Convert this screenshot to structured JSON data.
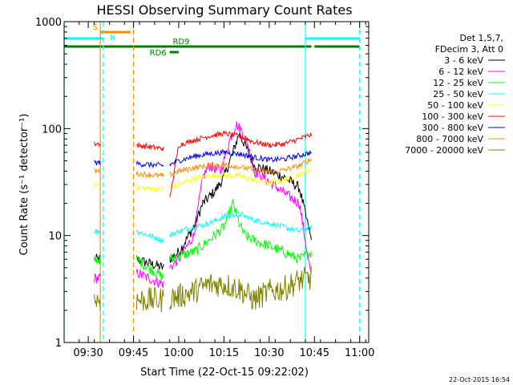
{
  "chart_data": {
    "type": "line",
    "title": "HESSI Observing Summary Count Rates",
    "xlabel": "Start Time (22-Oct-15 09:22:02)",
    "ylabel": "Count Rate (s⁻¹ detector⁻¹)",
    "yscale": "log",
    "ylim": [
      1,
      1000
    ],
    "xlim": [
      "09:22",
      "11:03"
    ],
    "x_ticks": [
      "09:30",
      "09:45",
      "10:00",
      "10:15",
      "10:30",
      "10:45",
      "11:00"
    ],
    "y_ticks": [
      "1",
      "10",
      "100",
      "1000"
    ],
    "timestamp": "22-Oct-2015 16:54",
    "legend_header": [
      "Det 1,5,7,",
      "FDecim 3, Att 0"
    ],
    "series": [
      {
        "name": "3 - 6 keV",
        "color": "#000000",
        "x": [
          "09:32",
          "09:46",
          "09:50",
          "09:55",
          "09:57",
          "10:00",
          "10:05",
          "10:08",
          "10:12",
          "10:15",
          "10:18",
          "10:20",
          "10:22",
          "10:25",
          "10:30",
          "10:35",
          "10:40",
          "10:44"
        ],
        "y": [
          6,
          6,
          5.5,
          5,
          6,
          7,
          12,
          20,
          26,
          35,
          60,
          90,
          70,
          45,
          40,
          35,
          28,
          9
        ]
      },
      {
        "name": "6 - 12 keV",
        "color": "#ff00ff",
        "x": [
          "09:32",
          "09:46",
          "09:50",
          "09:55",
          "09:57",
          "10:00",
          "10:05",
          "10:08",
          "10:10",
          "10:14",
          "10:17",
          "10:19",
          "10:21",
          "10:23",
          "10:25",
          "10:30",
          "10:35",
          "10:40",
          "10:44"
        ],
        "y": [
          4,
          4.5,
          4,
          3.5,
          5,
          6,
          10,
          35,
          45,
          40,
          80,
          110,
          95,
          70,
          40,
          32,
          25,
          20,
          4
        ]
      },
      {
        "name": "12 - 25 keV",
        "color": "#00ff00",
        "x": [
          "09:32",
          "09:46",
          "09:55",
          "09:57",
          "10:00",
          "10:05",
          "10:10",
          "10:15",
          "10:18",
          "10:20",
          "10:22",
          "10:25",
          "10:30",
          "10:35",
          "10:40",
          "10:44"
        ],
        "y": [
          6,
          6,
          4,
          6,
          6.5,
          7,
          9,
          12,
          20,
          13,
          10,
          9,
          8,
          7,
          6,
          7
        ]
      },
      {
        "name": "25 - 50 keV",
        "color": "#00ffff",
        "x": [
          "09:32",
          "09:46",
          "09:55",
          "09:57",
          "10:00",
          "10:05",
          "10:10",
          "10:15",
          "10:20",
          "10:25",
          "10:30",
          "10:35",
          "10:40",
          "10:44"
        ],
        "y": [
          11,
          11,
          9,
          10,
          11,
          12,
          13,
          15,
          16,
          14,
          13,
          12,
          11,
          12
        ]
      },
      {
        "name": "50 - 100 keV",
        "color": "#ffff00",
        "x": [
          "09:32",
          "09:46",
          "09:55",
          "09:57",
          "10:00",
          "10:05",
          "10:10",
          "10:15",
          "10:20",
          "10:25",
          "10:30",
          "10:35",
          "10:40",
          "10:44"
        ],
        "y": [
          30,
          28,
          27,
          28,
          30,
          34,
          36,
          37,
          36,
          33,
          31,
          33,
          37,
          42
        ]
      },
      {
        "name": "100 - 300 keV",
        "color": "#ff0000",
        "x": [
          "09:32",
          "09:46",
          "09:55",
          "09:57",
          "10:00",
          "10:05",
          "10:10",
          "10:15",
          "10:20",
          "10:25",
          "10:30",
          "10:35",
          "10:40",
          "10:44"
        ],
        "y": [
          72,
          70,
          65,
          22,
          70,
          78,
          85,
          90,
          85,
          75,
          70,
          72,
          80,
          88
        ]
      },
      {
        "name": "300 - 800 keV",
        "color": "#0000ff",
        "x": [
          "09:32",
          "09:46",
          "09:55",
          "09:57",
          "10:00",
          "10:05",
          "10:10",
          "10:15",
          "10:20",
          "10:25",
          "10:30",
          "10:35",
          "10:40",
          "10:44"
        ],
        "y": [
          48,
          47,
          45,
          46,
          50,
          55,
          58,
          60,
          58,
          54,
          51,
          52,
          56,
          60
        ]
      },
      {
        "name": "800 - 7000 keV",
        "color": "#ff8c00",
        "x": [
          "09:32",
          "09:46",
          "09:55",
          "09:57",
          "10:00",
          "10:05",
          "10:10",
          "10:15",
          "10:20",
          "10:25",
          "10:30",
          "10:35",
          "10:40",
          "10:44"
        ],
        "y": [
          40,
          38,
          36,
          37,
          40,
          43,
          45,
          46,
          44,
          41,
          39,
          41,
          45,
          52
        ]
      },
      {
        "name": "7000 - 20000 keV",
        "color": "#808000",
        "x": [
          "09:32",
          "09:46",
          "09:55",
          "09:57",
          "10:00",
          "10:05",
          "10:10",
          "10:15",
          "10:20",
          "10:25",
          "10:30",
          "10:35",
          "10:40",
          "10:44"
        ],
        "y": [
          2.5,
          2.5,
          2.5,
          2.6,
          2.7,
          3,
          3.5,
          3.5,
          3.2,
          2.5,
          3,
          3.2,
          3.8,
          4
        ]
      }
    ],
    "flags": [
      {
        "label": "S",
        "color": "#ff8c00",
        "x": [
          "09:34",
          "09:44"
        ]
      },
      {
        "label": "N",
        "color": "#00ffff",
        "x": [
          "09:22",
          "09:35"
        ]
      },
      {
        "label": "N",
        "color": "#00ffff",
        "x": [
          "10:42",
          "11:00"
        ]
      },
      {
        "label": "RD9",
        "color": "#008000",
        "x": [
          "09:22",
          "10:44"
        ]
      },
      {
        "label": "RD9",
        "color": "#008000",
        "x": [
          "10:45",
          "11:00"
        ]
      },
      {
        "label": "RD6",
        "color": "#008000",
        "x": [
          "09:57",
          "10:00"
        ]
      }
    ],
    "vlines": [
      {
        "x": "09:22",
        "color": "#00ffff",
        "style": "solid"
      },
      {
        "x": "09:35",
        "color": "#00ffff",
        "style": "dashed"
      },
      {
        "x": "09:34",
        "color": "#ff8c00",
        "style": "solid"
      },
      {
        "x": "09:45",
        "color": "#ff8c00",
        "style": "dashed"
      },
      {
        "x": "10:42",
        "color": "#00ffff",
        "style": "solid"
      },
      {
        "x": "11:00",
        "color": "#00ffff",
        "style": "dashed"
      }
    ]
  }
}
